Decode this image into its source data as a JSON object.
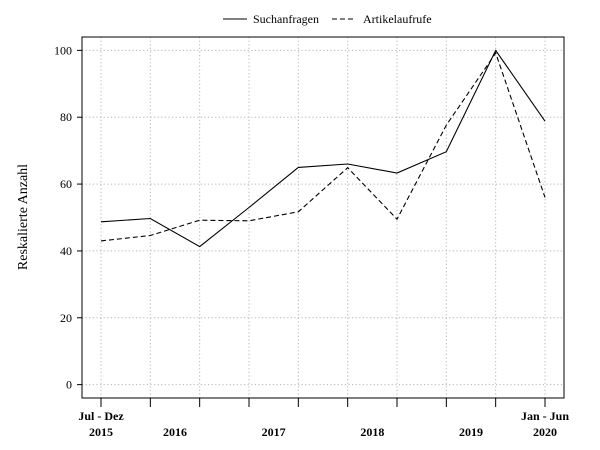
{
  "chart_data": {
    "type": "line",
    "title": "",
    "ylabel": "Reskalierte Anzahl",
    "xlabel": "",
    "ylim": [
      -4,
      104
    ],
    "yticks": [
      0,
      20,
      40,
      60,
      80,
      100
    ],
    "grid": true,
    "legend_position": "top-center",
    "periods": [
      "Jul - Dez 2015",
      "Jan - Jun 2016",
      "Jul - Dez 2016",
      "Jan - Jun 2017",
      "Jul - Dez 2017",
      "Jan - Jun 2018",
      "Jul - Dez 2018",
      "Jan - Jun 2019",
      "Jul - Dez 2019",
      "Jan - Jun 2020"
    ],
    "x_top_labels": [
      {
        "index": 0,
        "text": "Jul - Dez"
      },
      {
        "index": 9,
        "text": "Jan - Jun"
      }
    ],
    "x_bottom_labels": [
      {
        "index": 0,
        "text": "2015"
      },
      {
        "index": 1.5,
        "text": "2016"
      },
      {
        "index": 3.5,
        "text": "2017"
      },
      {
        "index": 5.5,
        "text": "2018"
      },
      {
        "index": 7.5,
        "text": "2019"
      },
      {
        "index": 9,
        "text": "2020"
      }
    ],
    "series": [
      {
        "name": "Suchanfragen",
        "style": "solid",
        "color": "#000000",
        "values": [
          48.7,
          49.7,
          41.3,
          53.0,
          65.0,
          66.0,
          63.3,
          69.7,
          100.0,
          78.8
        ]
      },
      {
        "name": "Artikelaufrufe",
        "style": "dashed",
        "color": "#000000",
        "values": [
          43.0,
          44.6,
          49.2,
          49.0,
          51.7,
          64.9,
          49.5,
          77.6,
          99.2,
          56.0
        ]
      }
    ]
  }
}
